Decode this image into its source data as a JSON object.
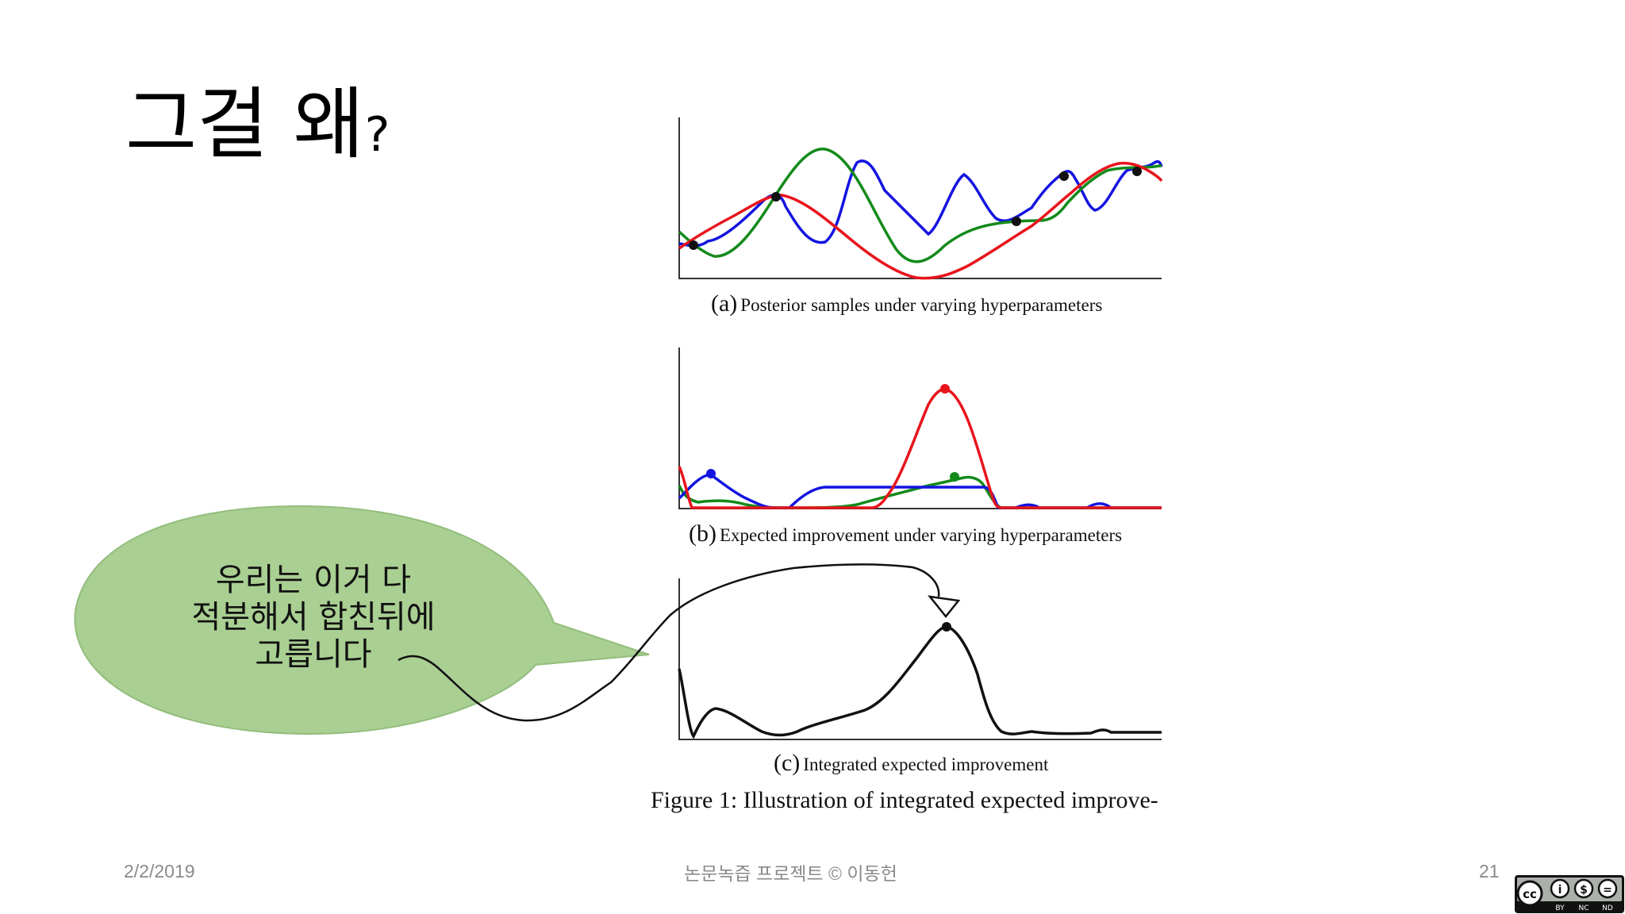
{
  "slide": {
    "title": "그걸 왜",
    "title_mark": "?",
    "date": "2/2/2019",
    "footer_center": "논문녹즙 프로젝트 © 이동헌",
    "page_number": "21"
  },
  "callout": {
    "lines": [
      "우리는 이거 다",
      "적분해서 합친뒤에",
      "고릅니다"
    ],
    "fill": "#a9cf92"
  },
  "figure": {
    "panel_a": {
      "tag": "(a)",
      "caption": "Posterior samples under varying hyperparameters"
    },
    "panel_b": {
      "tag": "(b)",
      "caption": "Expected improvement under varying hyperparameters"
    },
    "panel_c": {
      "tag": "(c)",
      "caption": "Integrated expected improvement"
    },
    "caption": "Figure 1: Illustration of integrated expected improve-",
    "colors": {
      "red": "#e8141c",
      "green": "#138a1a",
      "blue": "#1414e0",
      "black": "#111111"
    }
  },
  "license_badge": {
    "labels": [
      "BY",
      "NC",
      "ND"
    ],
    "icon": "cc-by-nc-nd-icon"
  }
}
